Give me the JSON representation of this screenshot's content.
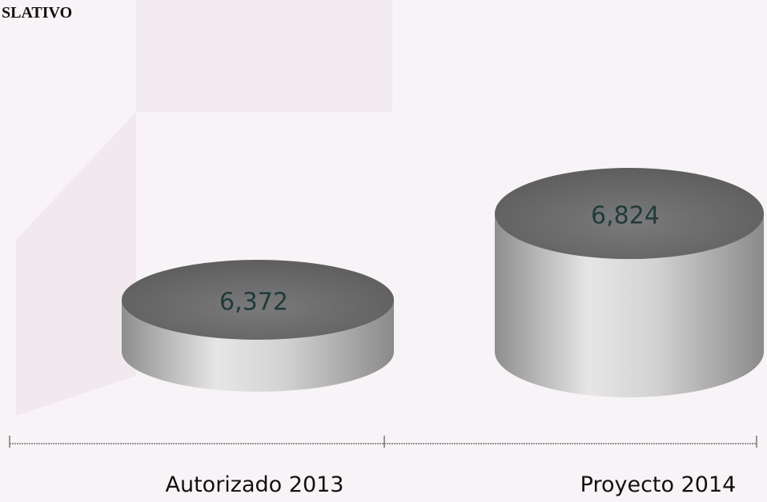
{
  "chart_data": {
    "type": "cylinder",
    "title": "SLATIVO",
    "categories": [
      "Autorizado 2013",
      "Proyecto 2014"
    ],
    "values": [
      6372,
      6824
    ],
    "value_labels": [
      "6,372",
      "6,824"
    ],
    "ylim": [
      6100,
      7000
    ],
    "color": "#b8b8b8"
  }
}
